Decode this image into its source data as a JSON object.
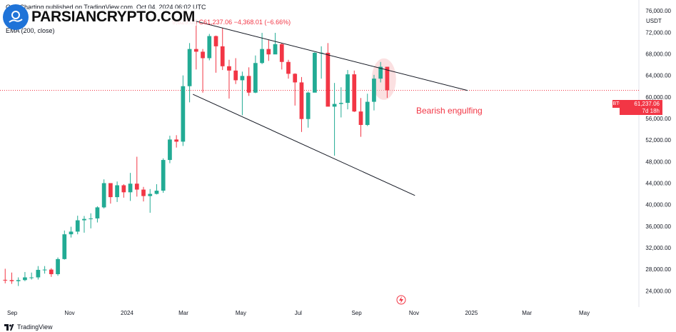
{
  "header": {
    "published_text": "Otto  Charting published on TradingView.com, Oct 04, 2024 06:02 UTC",
    "symbol_prefix": "B",
    "ohlc_visible": "9,829.05  C61,237.06  −4,368.01 (−6.66%)",
    "indicator_text": "EMA (200, close)"
  },
  "watermark": {
    "logo_text": "PARSIANCRYPTO.COM"
  },
  "price_axis": {
    "currency_label": "USDT",
    "last_price_label": "61,237.06",
    "last_price_countdown": "7d 18h",
    "symbol_tag": "BTCUSDT"
  },
  "annotation": {
    "pattern_label": "Bearish engulfing"
  },
  "footer": {
    "brand": "TradingView"
  },
  "colors": {
    "up": "#22ab94",
    "down": "#f23645",
    "trendline": "#131722",
    "highlight": "#f8c6c9"
  },
  "chart_data": {
    "type": "candlestick",
    "interval": "1W",
    "symbol": "BTCUSDT",
    "y_ticks": [
      24000,
      28000,
      32000,
      36000,
      40000,
      44000,
      48000,
      52000,
      56000,
      60000,
      64000,
      68000,
      72000,
      76000
    ],
    "y_tick_labels": [
      "24,000.00",
      "28,000.00",
      "32,000.00",
      "36,000.00",
      "40,000.00",
      "44,000.00",
      "48,000.00",
      "52,000.00",
      "56,000.00",
      "60,000.00",
      "64,000.00",
      "68,000.00",
      "72,000.00",
      "76,000.00"
    ],
    "ylim": [
      21000,
      78000
    ],
    "x_ticks": [
      {
        "label": "Sep",
        "date": "2023-09-01"
      },
      {
        "label": "Nov",
        "date": "2023-11-01"
      },
      {
        "label": "2024",
        "date": "2024-01-01"
      },
      {
        "label": "Mar",
        "date": "2024-03-01"
      },
      {
        "label": "May",
        "date": "2024-05-01"
      },
      {
        "label": "Jul",
        "date": "2024-07-01"
      },
      {
        "label": "Sep",
        "date": "2024-09-01"
      },
      {
        "label": "Nov",
        "date": "2024-11-01"
      },
      {
        "label": "2025",
        "date": "2025-01-01"
      },
      {
        "label": "Mar",
        "date": "2025-03-01"
      },
      {
        "label": "May",
        "date": "2025-05-01"
      }
    ],
    "xlim": [
      "2023-08-19",
      "2025-06-28"
    ],
    "candles": [
      {
        "date": "2023-08-21",
        "o": 26050,
        "h": 28100,
        "l": 25400,
        "c": 26000
      },
      {
        "date": "2023-08-28",
        "o": 26000,
        "h": 27400,
        "l": 25300,
        "c": 25800
      },
      {
        "date": "2023-09-04",
        "o": 25800,
        "h": 26500,
        "l": 24900,
        "c": 26000
      },
      {
        "date": "2023-09-11",
        "o": 26000,
        "h": 27500,
        "l": 25800,
        "c": 26500
      },
      {
        "date": "2023-09-18",
        "o": 26500,
        "h": 27400,
        "l": 26100,
        "c": 26500
      },
      {
        "date": "2023-09-25",
        "o": 26500,
        "h": 28600,
        "l": 26100,
        "c": 27900
      },
      {
        "date": "2023-10-02",
        "o": 27900,
        "h": 28600,
        "l": 27200,
        "c": 27950
      },
      {
        "date": "2023-10-09",
        "o": 27950,
        "h": 28200,
        "l": 26600,
        "c": 27100
      },
      {
        "date": "2023-10-16",
        "o": 27100,
        "h": 30200,
        "l": 26800,
        "c": 29900
      },
      {
        "date": "2023-10-23",
        "o": 29900,
        "h": 35200,
        "l": 29800,
        "c": 34500
      },
      {
        "date": "2023-10-30",
        "o": 34500,
        "h": 35900,
        "l": 33900,
        "c": 35000
      },
      {
        "date": "2023-11-06",
        "o": 35000,
        "h": 37950,
        "l": 34500,
        "c": 37100
      },
      {
        "date": "2023-11-13",
        "o": 37100,
        "h": 37900,
        "l": 34800,
        "c": 37350
      },
      {
        "date": "2023-11-20",
        "o": 37350,
        "h": 38400,
        "l": 35600,
        "c": 37450
      },
      {
        "date": "2023-11-27",
        "o": 37450,
        "h": 39700,
        "l": 36700,
        "c": 39500
      },
      {
        "date": "2023-12-04",
        "o": 39500,
        "h": 44700,
        "l": 39300,
        "c": 44000
      },
      {
        "date": "2023-12-11",
        "o": 44000,
        "h": 44000,
        "l": 40200,
        "c": 41400
      },
      {
        "date": "2023-12-18",
        "o": 41400,
        "h": 44300,
        "l": 40500,
        "c": 43600
      },
      {
        "date": "2023-12-25",
        "o": 43600,
        "h": 43800,
        "l": 41300,
        "c": 42300
      },
      {
        "date": "2024-01-01",
        "o": 42300,
        "h": 45900,
        "l": 40700,
        "c": 43900
      },
      {
        "date": "2024-01-08",
        "o": 43900,
        "h": 48900,
        "l": 41500,
        "c": 42800
      },
      {
        "date": "2024-01-15",
        "o": 42800,
        "h": 43300,
        "l": 40600,
        "c": 41600
      },
      {
        "date": "2024-01-22",
        "o": 41600,
        "h": 42900,
        "l": 38500,
        "c": 42000
      },
      {
        "date": "2024-01-29",
        "o": 42000,
        "h": 43800,
        "l": 41900,
        "c": 42600
      },
      {
        "date": "2024-02-05",
        "o": 42600,
        "h": 48600,
        "l": 42200,
        "c": 48300
      },
      {
        "date": "2024-02-12",
        "o": 48300,
        "h": 52800,
        "l": 47700,
        "c": 52100
      },
      {
        "date": "2024-02-19",
        "o": 52100,
        "h": 52900,
        "l": 50600,
        "c": 51700
      },
      {
        "date": "2024-02-26",
        "o": 51700,
        "h": 64000,
        "l": 50900,
        "c": 62000
      },
      {
        "date": "2024-03-04",
        "o": 62000,
        "h": 70000,
        "l": 59000,
        "c": 68900
      },
      {
        "date": "2024-03-11",
        "o": 68900,
        "h": 73800,
        "l": 65100,
        "c": 68400
      },
      {
        "date": "2024-03-18",
        "o": 68400,
        "h": 68900,
        "l": 60800,
        "c": 67200
      },
      {
        "date": "2024-03-25",
        "o": 67200,
        "h": 71700,
        "l": 66800,
        "c": 71300
      },
      {
        "date": "2024-04-01",
        "o": 71300,
        "h": 71400,
        "l": 64500,
        "c": 69400
      },
      {
        "date": "2024-04-08",
        "o": 69400,
        "h": 72800,
        "l": 65000,
        "c": 65700
      },
      {
        "date": "2024-04-15",
        "o": 65700,
        "h": 66900,
        "l": 59700,
        "c": 64900
      },
      {
        "date": "2024-04-22",
        "o": 64900,
        "h": 67200,
        "l": 62400,
        "c": 63100
      },
      {
        "date": "2024-04-29",
        "o": 63100,
        "h": 64700,
        "l": 56600,
        "c": 63900
      },
      {
        "date": "2024-05-06",
        "o": 63900,
        "h": 65500,
        "l": 60200,
        "c": 60800
      },
      {
        "date": "2024-05-13",
        "o": 60800,
        "h": 67700,
        "l": 60700,
        "c": 66300
      },
      {
        "date": "2024-05-20",
        "o": 66300,
        "h": 71900,
        "l": 66100,
        "c": 68900
      },
      {
        "date": "2024-05-27",
        "o": 68900,
        "h": 70600,
        "l": 66700,
        "c": 67900
      },
      {
        "date": "2024-06-03",
        "o": 67900,
        "h": 71900,
        "l": 68300,
        "c": 69800
      },
      {
        "date": "2024-06-10",
        "o": 69800,
        "h": 70000,
        "l": 65100,
        "c": 66500
      },
      {
        "date": "2024-06-17",
        "o": 66500,
        "h": 66900,
        "l": 63400,
        "c": 64300
      },
      {
        "date": "2024-06-24",
        "o": 64300,
        "h": 64400,
        "l": 58400,
        "c": 62700
      },
      {
        "date": "2024-07-01",
        "o": 62700,
        "h": 63700,
        "l": 53500,
        "c": 55900
      },
      {
        "date": "2024-07-08",
        "o": 55900,
        "h": 61000,
        "l": 54300,
        "c": 60800
      },
      {
        "date": "2024-07-15",
        "o": 60800,
        "h": 68300,
        "l": 61200,
        "c": 68200
      },
      {
        "date": "2024-07-22",
        "o": 68200,
        "h": 69400,
        "l": 63400,
        "c": 68200
      },
      {
        "date": "2024-07-29",
        "o": 68200,
        "h": 70000,
        "l": 58300,
        "c": 58200
      },
      {
        "date": "2024-08-05",
        "o": 58200,
        "h": 62600,
        "l": 49100,
        "c": 58700
      },
      {
        "date": "2024-08-12",
        "o": 58700,
        "h": 61800,
        "l": 56200,
        "c": 58900
      },
      {
        "date": "2024-08-19",
        "o": 58900,
        "h": 65000,
        "l": 57700,
        "c": 64200
      },
      {
        "date": "2024-08-26",
        "o": 64200,
        "h": 64900,
        "l": 57200,
        "c": 57300
      },
      {
        "date": "2024-09-02",
        "o": 57300,
        "h": 59800,
        "l": 52600,
        "c": 54800
      },
      {
        "date": "2024-09-09",
        "o": 54800,
        "h": 60600,
        "l": 54600,
        "c": 59100
      },
      {
        "date": "2024-09-16",
        "o": 59100,
        "h": 64100,
        "l": 57500,
        "c": 63400
      },
      {
        "date": "2024-09-23",
        "o": 63400,
        "h": 66500,
        "l": 62700,
        "c": 65600
      },
      {
        "date": "2024-09-30",
        "o": 65600,
        "h": 65600,
        "l": 59829.05,
        "c": 61237.06
      }
    ],
    "trendlines": [
      {
        "name": "upper",
        "from": {
          "date": "2024-03-11",
          "price": 74200
        },
        "to": {
          "date": "2024-12-28",
          "price": 61200
        }
      },
      {
        "name": "lower",
        "from": {
          "date": "2024-03-11",
          "price": 60500
        },
        "to": {
          "date": "2024-11-02",
          "price": 41700
        }
      }
    ],
    "last_price": 61237.06,
    "highlight_date": "2024-09-30"
  }
}
